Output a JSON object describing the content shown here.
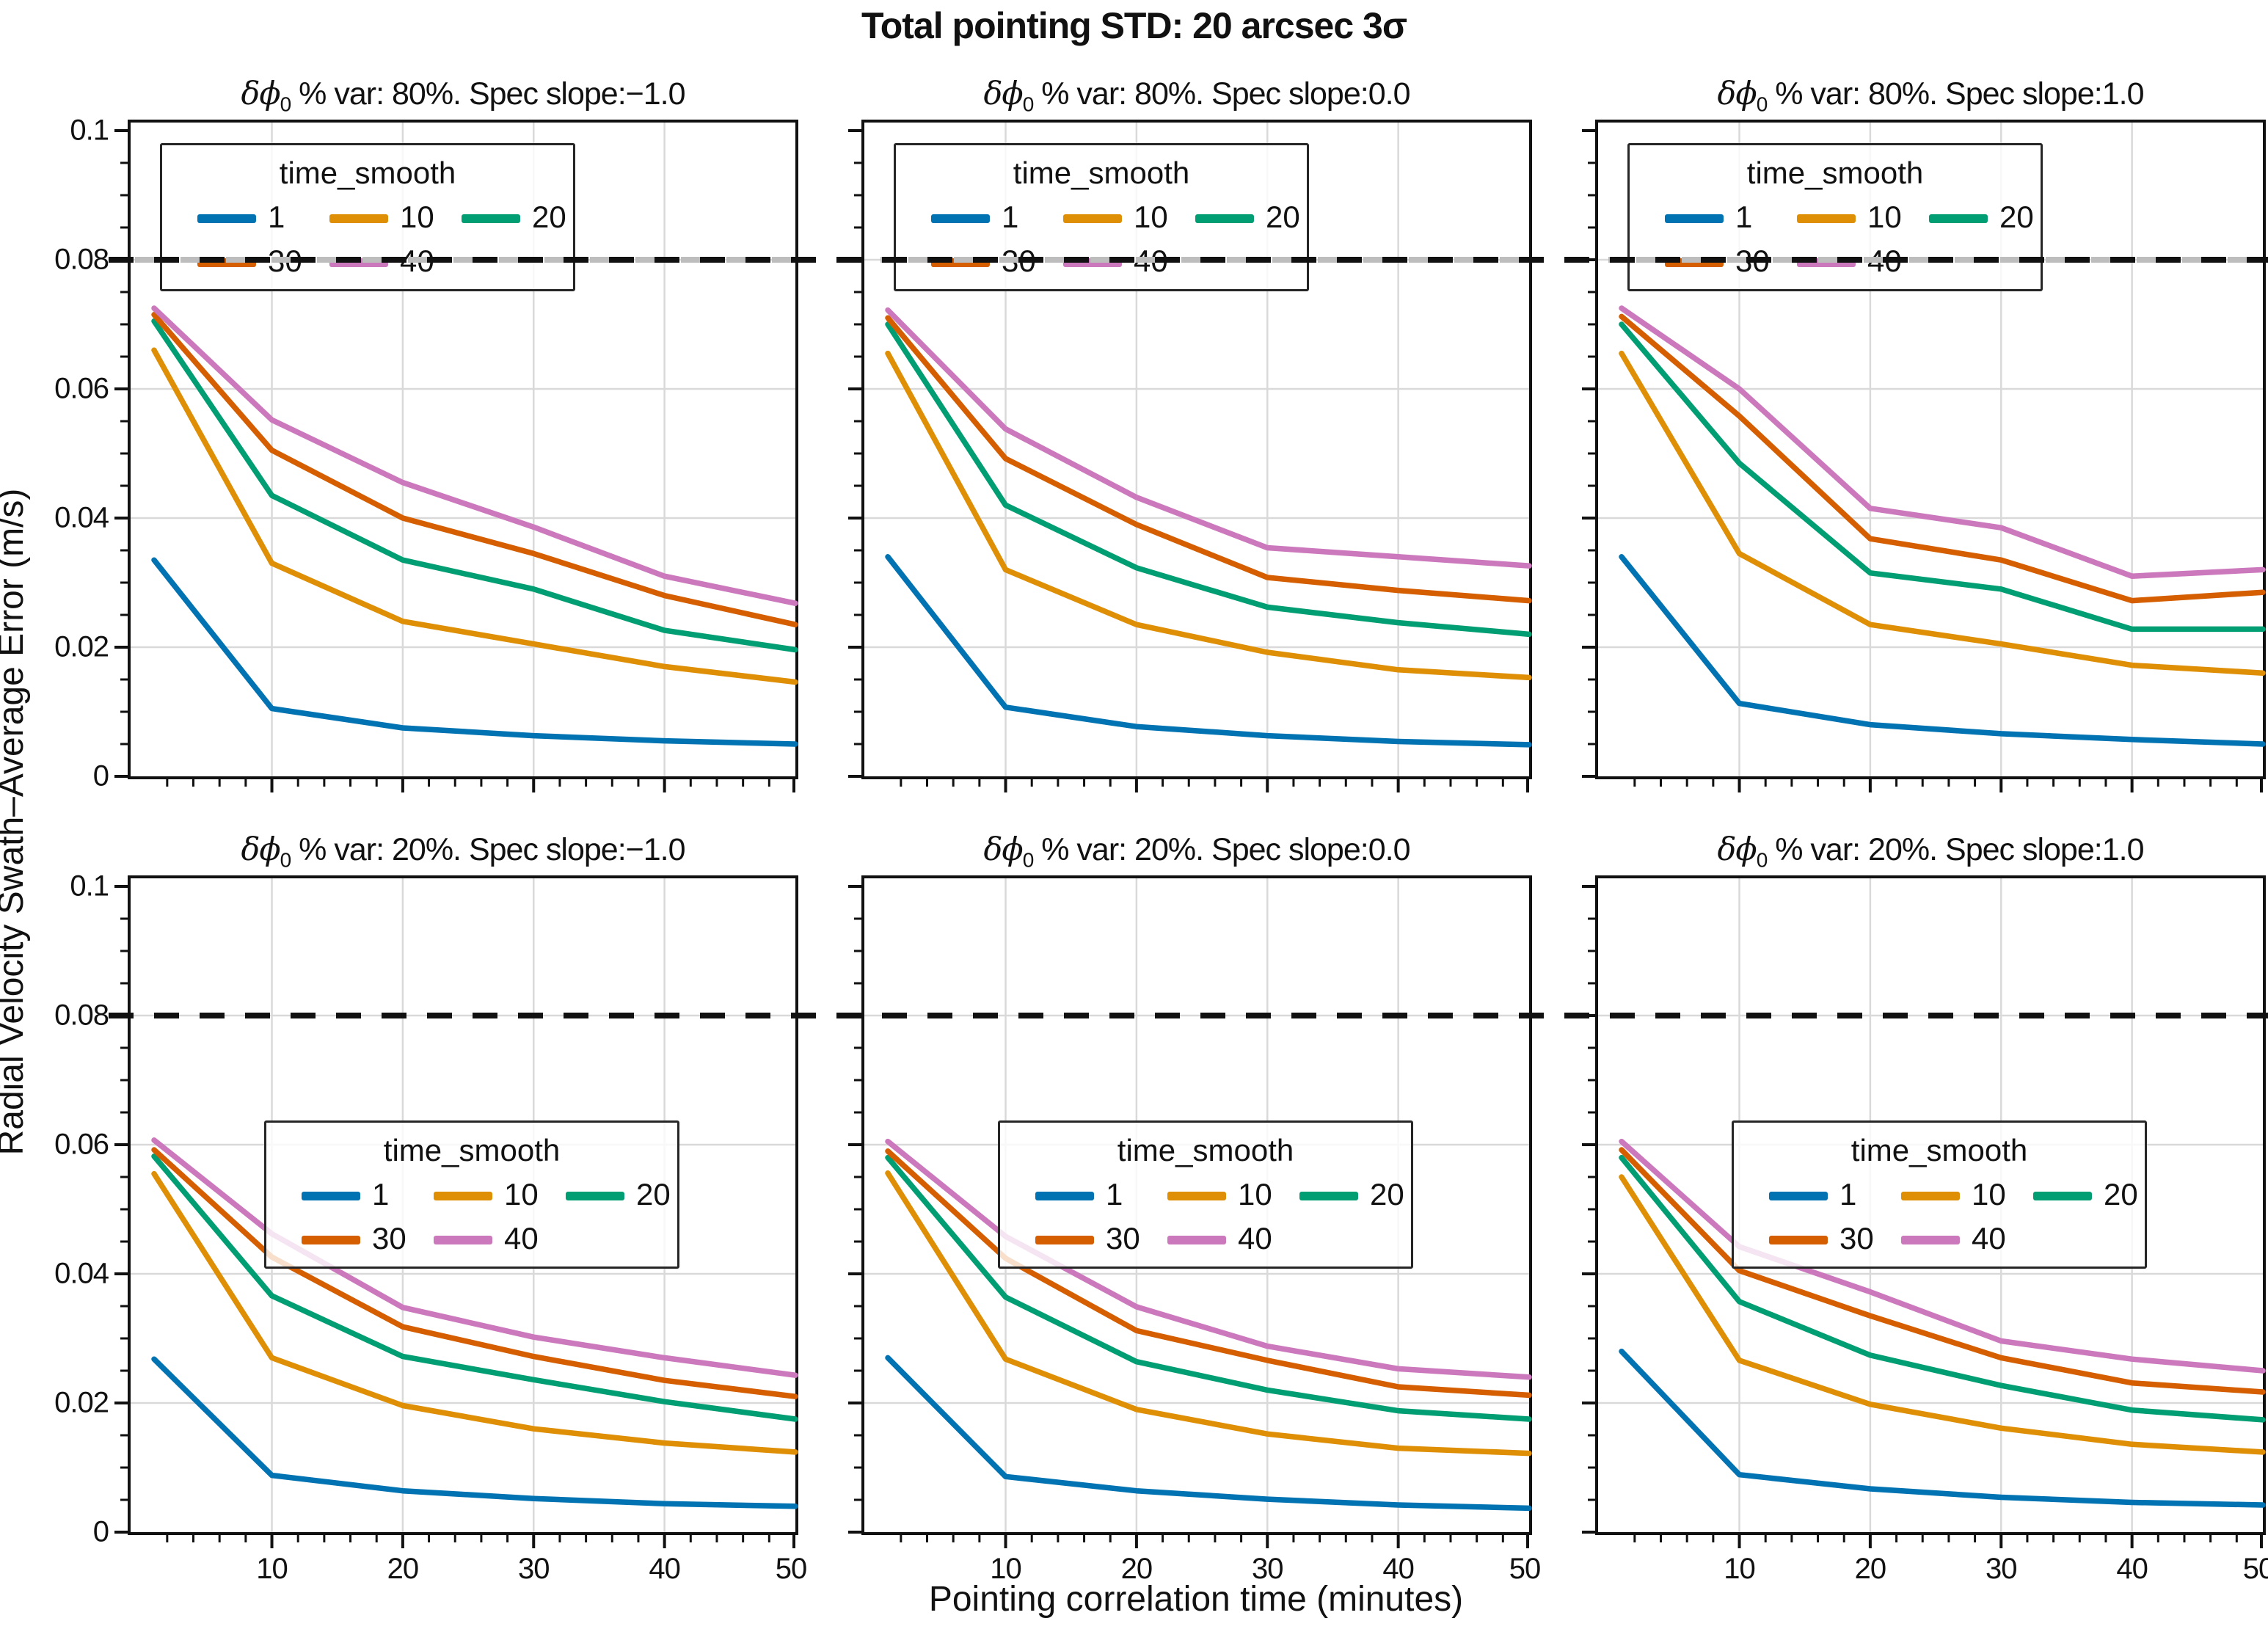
{
  "figure": {
    "suptitle": "Total pointing STD:  20 arcsec  3σ",
    "xlabel": "Pointing correlation time (minutes)",
    "ylabel": "Radial Velocity Swath–Average Error (m/s)"
  },
  "legend": {
    "title": "time_smooth",
    "entries": [
      {
        "label": "1",
        "color": "#0173b2"
      },
      {
        "label": "10",
        "color": "#de8f05"
      },
      {
        "label": "20",
        "color": "#029e73"
      },
      {
        "label": "30",
        "color": "#d55e00"
      },
      {
        "label": "40",
        "color": "#cc78bc"
      }
    ]
  },
  "axes": {
    "x_ticks": [
      10,
      20,
      30,
      40,
      50
    ],
    "x_minor_step": 2,
    "y_ticks": [
      {
        "v": 0,
        "label": "0"
      },
      {
        "v": 0.02,
        "label": "0.02"
      },
      {
        "v": 0.04,
        "label": "0.04"
      },
      {
        "v": 0.06,
        "label": "0.06"
      },
      {
        "v": 0.08,
        "label": "0.08"
      },
      {
        "v": 0.1,
        "label": "0.1"
      }
    ],
    "y_minor_step": 0.005,
    "x_range": [
      1,
      50
    ],
    "y_range": [
      0,
      0.1
    ],
    "grid_color": "#d9d9d9",
    "threshold_value": 0.08,
    "threshold_color_black": "#111111",
    "threshold_color_grey": "#bdbdbd"
  },
  "chart_data": [
    {
      "type": "line",
      "row": 0,
      "col": 0,
      "title_sym": "δϕ",
      "title_sub": "0",
      "title_rest": " % var: 80%. Spec slope:−1.0",
      "x": [
        1,
        10,
        20,
        30,
        40,
        50
      ],
      "series": [
        {
          "name": "1",
          "values": [
            0.0335,
            0.0105,
            0.0075,
            0.0063,
            0.0055,
            0.005
          ]
        },
        {
          "name": "10",
          "values": [
            0.066,
            0.033,
            0.024,
            0.0205,
            0.017,
            0.0146
          ]
        },
        {
          "name": "20",
          "values": [
            0.0705,
            0.0435,
            0.0335,
            0.029,
            0.0226,
            0.0196
          ]
        },
        {
          "name": "30",
          "values": [
            0.0715,
            0.0505,
            0.04,
            0.0345,
            0.028,
            0.0235
          ]
        },
        {
          "name": "40",
          "values": [
            0.0725,
            0.0552,
            0.0455,
            0.0386,
            0.031,
            0.0268
          ]
        }
      ]
    },
    {
      "type": "line",
      "row": 0,
      "col": 1,
      "title_sym": "δϕ",
      "title_sub": "0",
      "title_rest": " % var: 80%. Spec slope:0.0",
      "x": [
        1,
        10,
        20,
        30,
        40,
        50
      ],
      "series": [
        {
          "name": "1",
          "values": [
            0.034,
            0.0107,
            0.0077,
            0.0063,
            0.0054,
            0.0049
          ]
        },
        {
          "name": "10",
          "values": [
            0.0655,
            0.032,
            0.0235,
            0.0192,
            0.0165,
            0.0153
          ]
        },
        {
          "name": "20",
          "values": [
            0.07,
            0.042,
            0.0323,
            0.0262,
            0.0238,
            0.022
          ]
        },
        {
          "name": "30",
          "values": [
            0.071,
            0.0492,
            0.039,
            0.0308,
            0.0288,
            0.0272
          ]
        },
        {
          "name": "40",
          "values": [
            0.0722,
            0.0538,
            0.0432,
            0.0354,
            0.034,
            0.0326
          ]
        }
      ]
    },
    {
      "type": "line",
      "row": 0,
      "col": 2,
      "title_sym": "δϕ",
      "title_sub": "0",
      "title_rest": " % var: 80%. Spec slope:1.0",
      "x": [
        1,
        10,
        20,
        30,
        40,
        50
      ],
      "series": [
        {
          "name": "1",
          "values": [
            0.034,
            0.0113,
            0.008,
            0.0066,
            0.0057,
            0.005
          ]
        },
        {
          "name": "10",
          "values": [
            0.0655,
            0.0345,
            0.0235,
            0.0205,
            0.0172,
            0.016
          ]
        },
        {
          "name": "20",
          "values": [
            0.07,
            0.0485,
            0.0315,
            0.029,
            0.0228,
            0.0228
          ]
        },
        {
          "name": "30",
          "values": [
            0.0712,
            0.0558,
            0.0368,
            0.0335,
            0.0272,
            0.0285
          ]
        },
        {
          "name": "40",
          "values": [
            0.0725,
            0.06,
            0.0415,
            0.0385,
            0.031,
            0.032
          ]
        }
      ]
    },
    {
      "type": "line",
      "row": 1,
      "col": 0,
      "title_sym": "δϕ",
      "title_sub": "0",
      "title_rest": " % var: 20%. Spec slope:−1.0",
      "x": [
        1,
        10,
        20,
        30,
        40,
        50
      ],
      "series": [
        {
          "name": "1",
          "values": [
            0.0268,
            0.0088,
            0.0064,
            0.0052,
            0.0044,
            0.004
          ]
        },
        {
          "name": "10",
          "values": [
            0.0555,
            0.027,
            0.0196,
            0.016,
            0.0138,
            0.0124
          ]
        },
        {
          "name": "20",
          "values": [
            0.0582,
            0.0366,
            0.0272,
            0.0236,
            0.0202,
            0.0175
          ]
        },
        {
          "name": "30",
          "values": [
            0.0592,
            0.0426,
            0.0318,
            0.0272,
            0.0235,
            0.021
          ]
        },
        {
          "name": "40",
          "values": [
            0.0607,
            0.0462,
            0.0348,
            0.0302,
            0.027,
            0.0243
          ]
        }
      ]
    },
    {
      "type": "line",
      "row": 1,
      "col": 1,
      "title_sym": "δϕ",
      "title_sub": "0",
      "title_rest": " % var: 20%. Spec slope:0.0",
      "x": [
        1,
        10,
        20,
        30,
        40,
        50
      ],
      "series": [
        {
          "name": "1",
          "values": [
            0.027,
            0.0086,
            0.0064,
            0.0051,
            0.0042,
            0.0037
          ]
        },
        {
          "name": "10",
          "values": [
            0.0556,
            0.0268,
            0.019,
            0.0152,
            0.013,
            0.0122
          ]
        },
        {
          "name": "20",
          "values": [
            0.058,
            0.0364,
            0.0264,
            0.022,
            0.0188,
            0.0175
          ]
        },
        {
          "name": "30",
          "values": [
            0.059,
            0.0424,
            0.0312,
            0.0266,
            0.0225,
            0.0212
          ]
        },
        {
          "name": "40",
          "values": [
            0.0605,
            0.0458,
            0.0349,
            0.0288,
            0.0253,
            0.024
          ]
        }
      ]
    },
    {
      "type": "line",
      "row": 1,
      "col": 2,
      "title_sym": "δϕ",
      "title_sub": "0",
      "title_rest": " % var: 20%. Spec slope:1.0",
      "x": [
        1,
        10,
        20,
        30,
        40,
        50
      ],
      "series": [
        {
          "name": "1",
          "values": [
            0.028,
            0.0089,
            0.0067,
            0.0054,
            0.0046,
            0.0042
          ]
        },
        {
          "name": "10",
          "values": [
            0.055,
            0.0266,
            0.0198,
            0.0161,
            0.0136,
            0.0124
          ]
        },
        {
          "name": "20",
          "values": [
            0.058,
            0.0357,
            0.0274,
            0.0227,
            0.0189,
            0.0174
          ]
        },
        {
          "name": "30",
          "values": [
            0.0592,
            0.0405,
            0.0335,
            0.027,
            0.0231,
            0.0217
          ]
        },
        {
          "name": "40",
          "values": [
            0.0605,
            0.0442,
            0.0372,
            0.0296,
            0.0268,
            0.025
          ]
        }
      ]
    }
  ]
}
